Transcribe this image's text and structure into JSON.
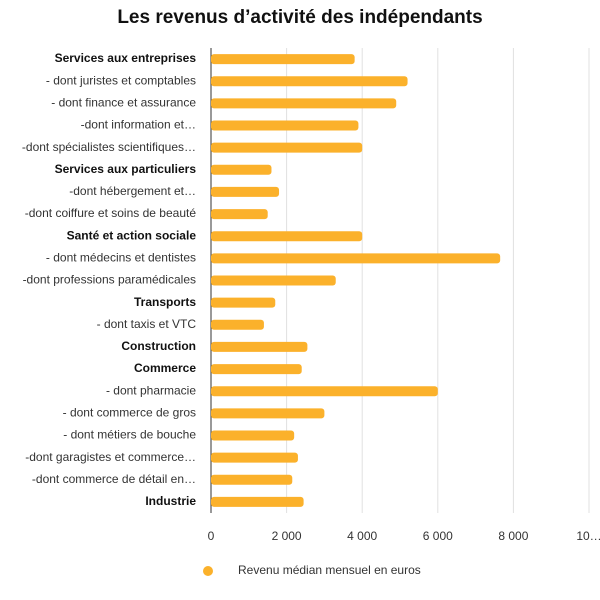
{
  "chart_data": {
    "type": "bar",
    "orientation": "horizontal",
    "title": "Les revenus d’activité des indépendants",
    "categories": [
      "Services aux entreprises",
      "- dont juristes et comptables",
      "- dont finance et assurance",
      "-dont information et…",
      "-dont spécialistes scientifiques…",
      "Services aux particuliers",
      "-dont hébergement et…",
      "-dont coiffure et soins de beauté",
      "Santé et action sociale",
      "- dont médecins et dentistes",
      "-dont professions paramédicales",
      "Transports",
      "- dont taxis et VTC",
      "Construction",
      "Commerce",
      "- dont pharmacie",
      "- dont commerce de gros",
      "- dont métiers de bouche",
      "-dont garagistes et commerce…",
      "-dont commerce de détail en…",
      "Industrie"
    ],
    "bold": [
      true,
      false,
      false,
      false,
      false,
      true,
      false,
      false,
      true,
      false,
      false,
      true,
      false,
      true,
      true,
      false,
      false,
      false,
      false,
      false,
      true
    ],
    "series": [
      {
        "name": "Revenu médian mensuel en euros",
        "color": "#fbb12b",
        "values": [
          3800,
          5200,
          4900,
          3900,
          4000,
          1600,
          1800,
          1500,
          4000,
          7650,
          3300,
          1700,
          1400,
          2550,
          2400,
          6000,
          3000,
          2200,
          2300,
          2150,
          2450
        ]
      }
    ],
    "xlim": [
      0,
      10000
    ],
    "xticks": [
      0,
      {
        "value": 2000,
        "label": "2 000"
      },
      {
        "value": 4000,
        "label": "4 000"
      },
      {
        "value": 6000,
        "label": "6 000"
      },
      {
        "value": 8000,
        "label": "8 000"
      },
      {
        "value": 10000,
        "label": "10…"
      }
    ],
    "grid": true,
    "legend": "bottom"
  }
}
